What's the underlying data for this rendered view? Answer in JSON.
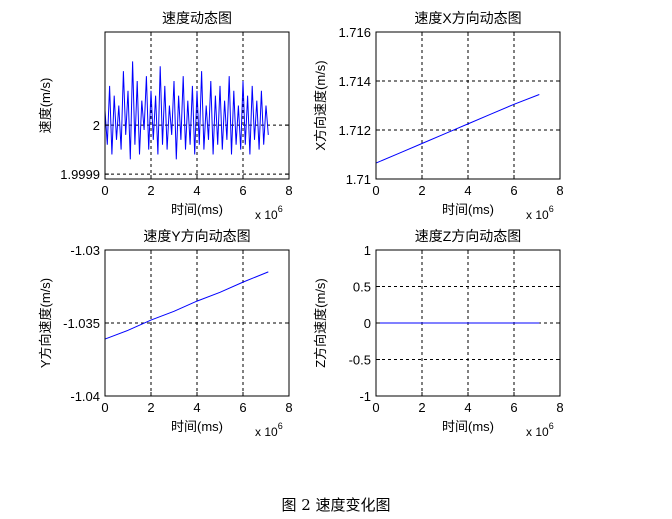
{
  "figure_caption": "图 2 速度变化图",
  "chart_data": [
    {
      "type": "line",
      "title": "速度动态图",
      "xlabel": "时间(ms)",
      "ylabel": "速度(m/s)",
      "x_multiplier": "x 10",
      "x_multiplier_exp": "6",
      "xlim": [
        0,
        8
      ],
      "ylim": [
        1.99989,
        2.00019
      ],
      "xticks": [
        0,
        2,
        4,
        6,
        8
      ],
      "xtick_labels": [
        "0",
        "2",
        "4",
        "6",
        "8"
      ],
      "yticks": [
        1.9999,
        2.0
      ],
      "ytick_labels": [
        "1.9999",
        "2"
      ],
      "grid": true,
      "series": [
        {
          "color": "#0000ff",
          "x": [
            0,
            0.1,
            0.2,
            0.3,
            0.4,
            0.5,
            0.6,
            0.7,
            0.8,
            0.9,
            1.0,
            1.1,
            1.2,
            1.3,
            1.4,
            1.5,
            1.6,
            1.7,
            1.8,
            1.9,
            2.0,
            2.1,
            2.2,
            2.3,
            2.4,
            2.5,
            2.6,
            2.7,
            2.8,
            2.9,
            3.0,
            3.1,
            3.2,
            3.3,
            3.4,
            3.5,
            3.6,
            3.7,
            3.8,
            3.9,
            4.0,
            4.1,
            4.2,
            4.3,
            4.4,
            4.5,
            4.6,
            4.7,
            4.8,
            4.9,
            5.0,
            5.1,
            5.2,
            5.3,
            5.4,
            5.5,
            5.6,
            5.7,
            5.8,
            5.9,
            6.0,
            6.1,
            6.2,
            6.3,
            6.4,
            6.5,
            6.6,
            6.7,
            6.8,
            6.9,
            7.0,
            7.1
          ],
          "y": [
            2.00003,
            1.99996,
            2.00008,
            1.99994,
            2.00006,
            1.99997,
            2.00004,
            1.99995,
            2.00011,
            1.99998,
            2.00007,
            1.99993,
            2.00013,
            1.99996,
            2.00009,
            1.99994,
            2.00005,
            1.99999,
            2.0001,
            1.99995,
            2.00007,
            1.99997,
            2.00006,
            1.99994,
            2.00012,
            1.99996,
            2.00008,
            1.99995,
            2.00004,
            1.99998,
            2.00009,
            1.99993,
            2.00006,
            1.99997,
            2.0001,
            1.99995,
            2.00005,
            1.99996,
            2.00008,
            1.99994,
            2.00007,
            1.99996,
            2.00011,
            1.99995,
            2.00004,
            1.99997,
            2.00009,
            1.99994,
            2.00006,
            1.99996,
            2.00008,
            1.99995,
            2.00005,
            1.99997,
            2.0001,
            1.99994,
            2.00007,
            1.99996,
            2.00004,
            1.99995,
            2.00009,
            1.99996,
            2.00006,
            1.99994,
            2.00008,
            1.99997,
            2.00005,
            1.99995,
            2.00007,
            1.99996,
            2.00004,
            1.99998
          ]
        }
      ]
    },
    {
      "type": "line",
      "title": "速度X方向动态图",
      "xlabel": "时间(ms)",
      "ylabel": "X方向速度(m/s)",
      "x_multiplier": "x 10",
      "x_multiplier_exp": "6",
      "xlim": [
        0,
        8
      ],
      "ylim": [
        1.71,
        1.716
      ],
      "xticks": [
        0,
        2,
        4,
        6,
        8
      ],
      "xtick_labels": [
        "0",
        "2",
        "4",
        "6",
        "8"
      ],
      "yticks": [
        1.71,
        1.712,
        1.714,
        1.716
      ],
      "ytick_labels": [
        "1.71",
        "1.712",
        "1.714",
        "1.716"
      ],
      "grid": true,
      "series": [
        {
          "color": "#0000ff",
          "x": [
            0,
            1,
            2,
            3,
            4,
            5,
            6,
            7.1
          ],
          "y": [
            1.71065,
            1.71105,
            1.71145,
            1.71185,
            1.71225,
            1.71265,
            1.71305,
            1.71345
          ]
        }
      ]
    },
    {
      "type": "line",
      "title": "速度Y方向动态图",
      "xlabel": "时间(ms)",
      "ylabel": "Y方向速度(m/s)",
      "x_multiplier": "x 10",
      "x_multiplier_exp": "6",
      "xlim": [
        0,
        8
      ],
      "ylim": [
        -1.04,
        -1.03
      ],
      "xticks": [
        0,
        2,
        4,
        6,
        8
      ],
      "xtick_labels": [
        "0",
        "2",
        "4",
        "6",
        "8"
      ],
      "yticks": [
        -1.04,
        -1.035,
        -1.03
      ],
      "ytick_labels": [
        "-1.04",
        "-1.035",
        "-1.03"
      ],
      "grid": true,
      "series": [
        {
          "color": "#0000ff",
          "x": [
            0,
            1,
            2,
            3,
            4,
            5,
            6,
            7.1
          ],
          "y": [
            -1.0361,
            -1.0355,
            -1.0348,
            -1.0342,
            -1.0335,
            -1.0329,
            -1.0322,
            -1.0315
          ]
        }
      ]
    },
    {
      "type": "line",
      "title": "速度Z方向动态图",
      "xlabel": "时间(ms)",
      "ylabel": "Z方向速度(m/s)",
      "x_multiplier": "x 10",
      "x_multiplier_exp": "6",
      "xlim": [
        0,
        8
      ],
      "ylim": [
        -1,
        1
      ],
      "xticks": [
        0,
        2,
        4,
        6,
        8
      ],
      "xtick_labels": [
        "0",
        "2",
        "4",
        "6",
        "8"
      ],
      "yticks": [
        -1,
        -0.5,
        0,
        0.5,
        1
      ],
      "ytick_labels": [
        "-1",
        "-0.5",
        "0",
        "0.5",
        "1"
      ],
      "grid": true,
      "series": [
        {
          "color": "#0000ff",
          "x": [
            0,
            7.1
          ],
          "y": [
            0,
            0
          ]
        }
      ]
    }
  ]
}
